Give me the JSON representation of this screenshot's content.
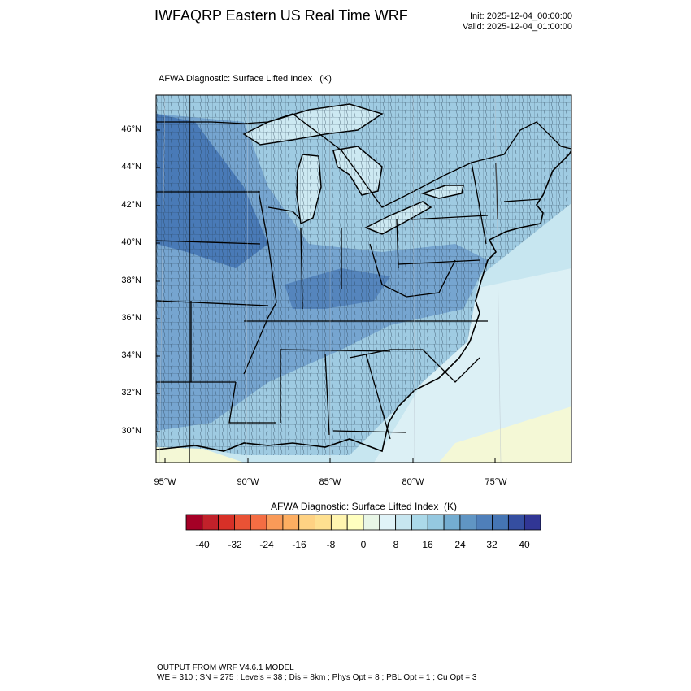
{
  "header": {
    "title": "IWFAQRP Eastern US Real Time WRF",
    "init": "Init: 2025-12-04_00:00:00",
    "valid": "Valid: 2025-12-04_01:00:00"
  },
  "panel": {
    "subtitle": "AFWA Diagnostic: Surface Lifted Index   (K)"
  },
  "map": {
    "lat_labels": [
      "46°N",
      "44°N",
      "42°N",
      "40°N",
      "38°N",
      "36°N",
      "34°N",
      "32°N",
      "30°N"
    ],
    "lon_labels": [
      "95°W",
      "90°W",
      "85°W",
      "80°W",
      "75°W"
    ],
    "colors": {
      "deep_blue": "#3f6fb0",
      "mid_blue": "#6f9fcc",
      "light_blue": "#9fcbe2",
      "pale_blue": "#c7e6f0",
      "very_pale": "#dcf0f5",
      "pale_yellow": "#f4f8d6",
      "lake": "#cde9f2",
      "border": "#000000"
    }
  },
  "colorbar": {
    "title": "AFWA Diagnostic: Surface Lifted Index  (K)",
    "labels": [
      "-40",
      "-32",
      "-24",
      "-16",
      "-8",
      "0",
      "8",
      "16",
      "24",
      "32",
      "40"
    ],
    "colors": [
      "#a50026",
      "#c1212a",
      "#d73027",
      "#e95235",
      "#f46d43",
      "#f99a58",
      "#fdae61",
      "#fed283",
      "#fee090",
      "#fff5b0",
      "#ffffbf",
      "#e8f6e6",
      "#e0f3f8",
      "#c7e6f0",
      "#abd9e9",
      "#95c8e0",
      "#74add1",
      "#6095c4",
      "#4f7fba",
      "#4575b4",
      "#354ea0",
      "#313695"
    ]
  },
  "footer": {
    "line1": "OUTPUT FROM WRF V4.6.1 MODEL",
    "line2": "WE = 310 ; SN = 275 ; Levels = 38 ; Dis = 8km ; Phys Opt = 8 ; PBL Opt = 1 ; Cu Opt = 3"
  }
}
